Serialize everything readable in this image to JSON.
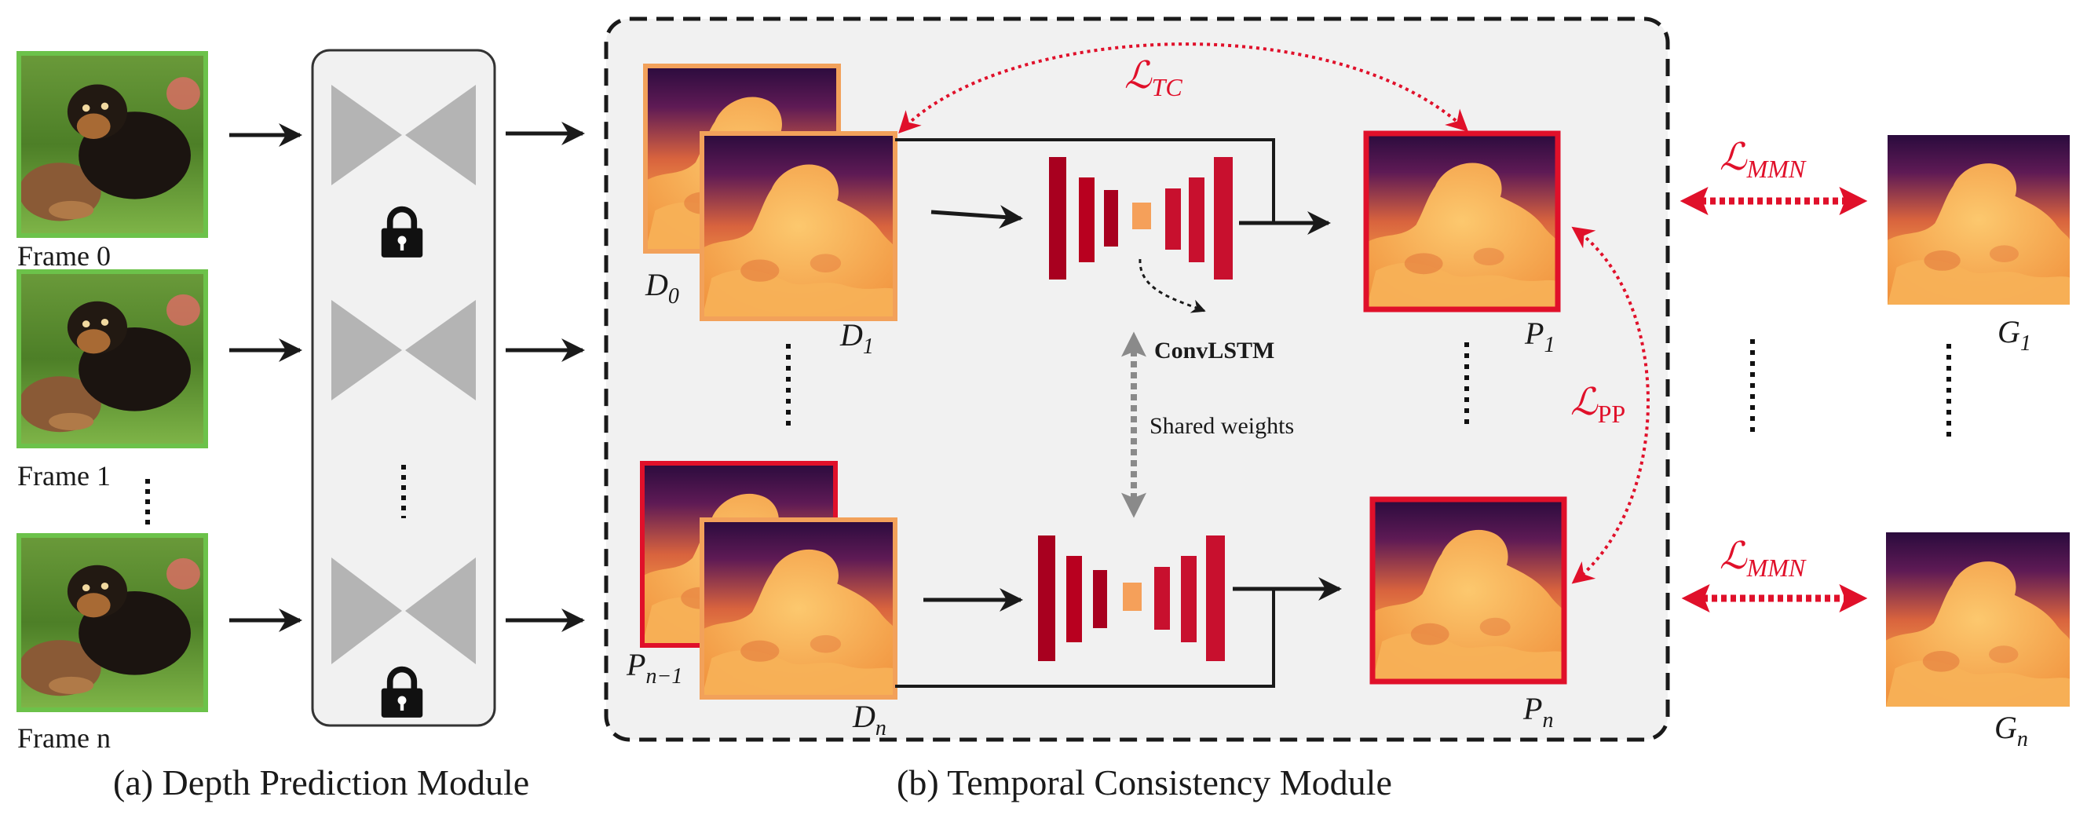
{
  "frames": [
    {
      "label": "Frame 0"
    },
    {
      "label": "Frame 1"
    },
    {
      "label": "Frame n"
    }
  ],
  "module_captions": {
    "depth": "(a) Depth Prediction Module",
    "temporal": "(b) Temporal Consistency Module"
  },
  "depth_labels": {
    "d0": {
      "main": "D",
      "sub": "0"
    },
    "d1": {
      "main": "D",
      "sub": "1"
    },
    "dn": {
      "main": "D",
      "sub": "n"
    },
    "pn_minus_1": {
      "main": "P",
      "sub": "n−1"
    },
    "p1": {
      "main": "P",
      "sub": "1"
    },
    "pn": {
      "main": "P",
      "sub": "n"
    },
    "g1": {
      "main": "G",
      "sub": "1"
    },
    "gn": {
      "main": "G",
      "sub": "n"
    }
  },
  "network_labels": {
    "convlstm": "ConvLSTM",
    "shared_weights": "Shared weights"
  },
  "losses": {
    "tc": {
      "main": "ℒ",
      "sub": "TC"
    },
    "pp": {
      "main": "ℒ",
      "sub": "PP"
    },
    "mmn_top": {
      "main": "ℒ",
      "sub": "MMN"
    },
    "mmn_bottom": {
      "main": "ℒ",
      "sub": "MMN"
    }
  },
  "colors": {
    "frame_border": "#6cc24a",
    "depth_border_orange": "#f2a15a",
    "pred_border_red": "#e0102a",
    "net_dark": "#a8001f",
    "net_mid": "#c8102e",
    "net_center": "#f5a05a",
    "loss_red": "#e0102a",
    "bowtie_gray": "#b4b4b4",
    "panel_bg": "#f1f1f1"
  },
  "icons": {
    "lock": "lock-icon",
    "frame_image": "puppy-image",
    "depth_image": "depth-map-image"
  }
}
